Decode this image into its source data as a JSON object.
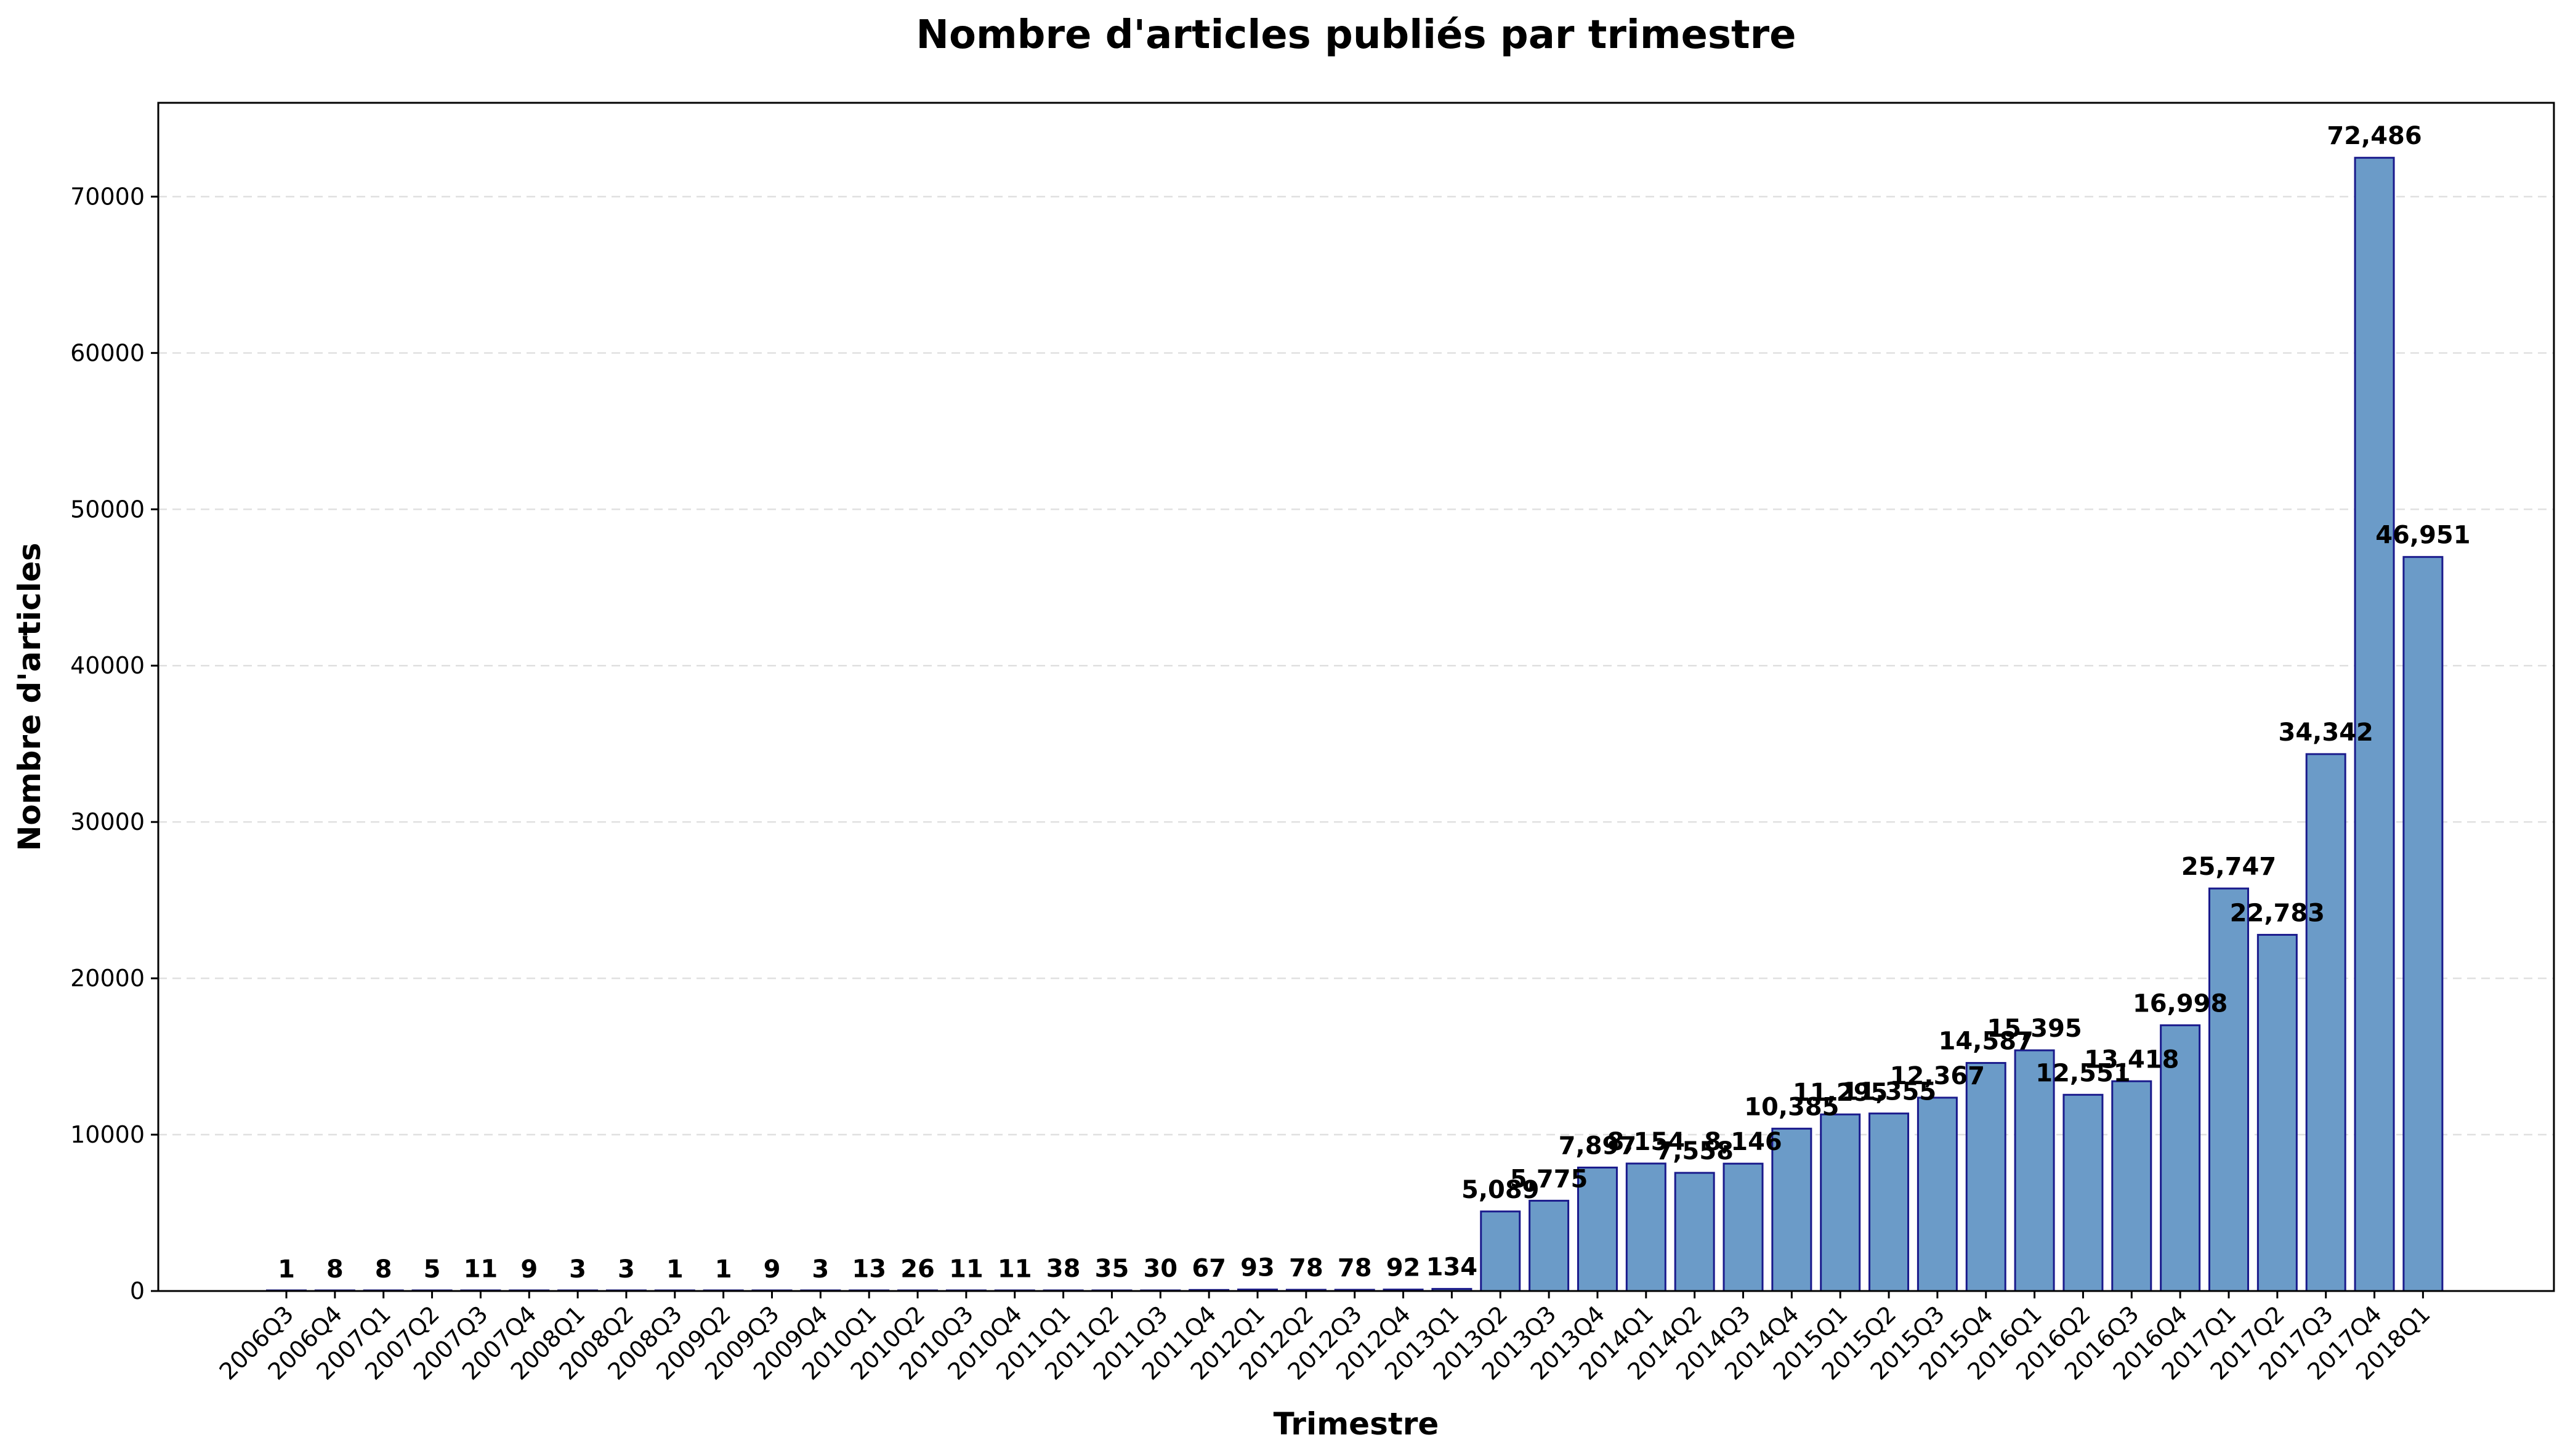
{
  "chart_data": {
    "type": "bar",
    "title": "Nombre d'articles publiés par trimestre",
    "xlabel": "Trimestre",
    "ylabel": "Nombre d'articles",
    "ylim": [
      0,
      76000
    ],
    "yticks": [
      0,
      10000,
      20000,
      30000,
      40000,
      50000,
      60000,
      70000
    ],
    "grid": "y-dashed",
    "bar_color": "#6b9bc8",
    "bar_edge_color": "#1a1a8c",
    "categories": [
      "2006Q3",
      "2006Q4",
      "2007Q1",
      "2007Q2",
      "2007Q3",
      "2007Q4",
      "2008Q1",
      "2008Q2",
      "2008Q3",
      "2009Q2",
      "2009Q3",
      "2009Q4",
      "2010Q1",
      "2010Q2",
      "2010Q3",
      "2010Q4",
      "2011Q1",
      "2011Q2",
      "2011Q3",
      "2011Q4",
      "2012Q1",
      "2012Q2",
      "2012Q3",
      "2012Q4",
      "2013Q1",
      "2013Q2",
      "2013Q3",
      "2013Q4",
      "2014Q1",
      "2014Q2",
      "2014Q3",
      "2014Q4",
      "2015Q1",
      "2015Q2",
      "2015Q3",
      "2015Q4",
      "2016Q1",
      "2016Q2",
      "2016Q3",
      "2016Q4",
      "2017Q1",
      "2017Q2",
      "2017Q3",
      "2017Q4",
      "2018Q1"
    ],
    "values": [
      1,
      8,
      8,
      5,
      11,
      9,
      3,
      3,
      1,
      1,
      9,
      3,
      13,
      26,
      11,
      11,
      38,
      35,
      30,
      67,
      93,
      78,
      78,
      92,
      134,
      5089,
      5775,
      7897,
      8154,
      7558,
      8146,
      10385,
      11295,
      11355,
      12367,
      14587,
      15395,
      12551,
      13418,
      16998,
      25747,
      22783,
      34342,
      72486,
      46951
    ],
    "value_labels": [
      "1",
      "8",
      "8",
      "5",
      "11",
      "9",
      "3",
      "3",
      "1",
      "1",
      "9",
      "3",
      "13",
      "26",
      "11",
      "11",
      "38",
      "35",
      "30",
      "67",
      "93",
      "78",
      "78",
      "92",
      "134",
      "5,089",
      "5,775",
      "7,897",
      "8,154",
      "7,558",
      "8,146",
      "10,385",
      "11,295",
      "11,355",
      "12,367",
      "14,587",
      "15,395",
      "12,551",
      "13,418",
      "16,998",
      "25,747",
      "22,783",
      "34,342",
      "72,486",
      "46,951"
    ]
  }
}
